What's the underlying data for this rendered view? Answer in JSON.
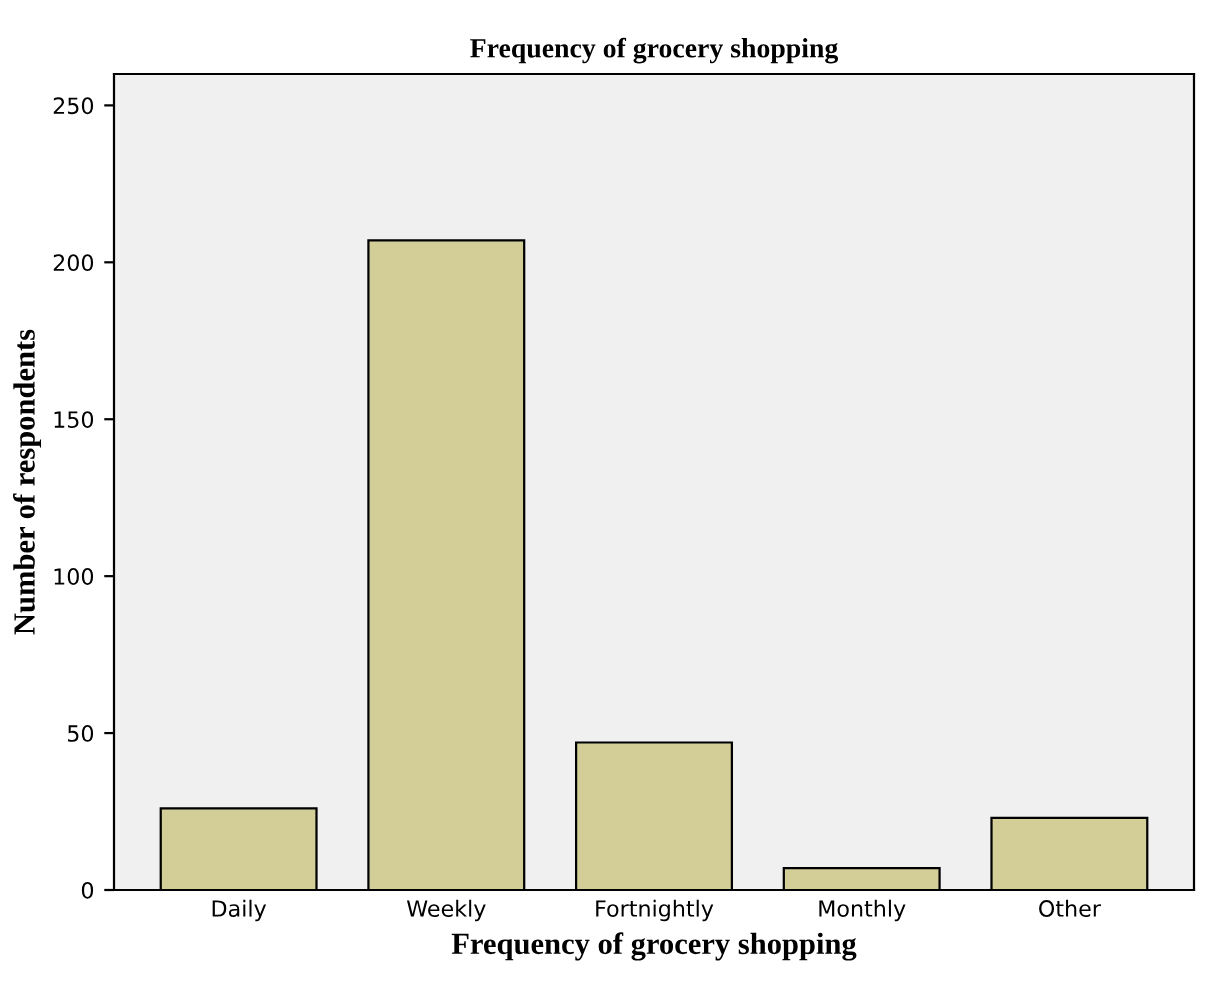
{
  "chart_data": {
    "type": "bar",
    "title": "Frequency of grocery shopping",
    "xlabel": "Frequency of grocery shopping",
    "ylabel": "Number of respondents",
    "categories": [
      "Daily",
      "Weekly",
      "Fortnightly",
      "Monthly",
      "Other"
    ],
    "values": [
      26,
      207,
      47,
      7,
      23
    ],
    "color": "#d3ce98",
    "ylim": [
      0,
      260
    ],
    "yticks": [
      0,
      50,
      100,
      150,
      200,
      250
    ],
    "grid": false
  }
}
